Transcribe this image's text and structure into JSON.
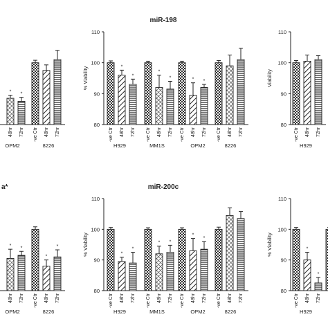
{
  "chart_data": [
    {
      "type": "bar",
      "title": "",
      "ylabel": "",
      "ylim": [
        80,
        110
      ],
      "yticks": [
        "80",
        "90",
        "100",
        "110"
      ],
      "categories": [
        "48hr",
        "72hr",
        "-ve Ctr",
        "48hr",
        "72hr"
      ],
      "groups": [
        "OPM2",
        "8226"
      ],
      "values": [
        88.5,
        87.5,
        100,
        97.5,
        101
      ],
      "errors": [
        1.0,
        1.3,
        0.8,
        1.8,
        3.0
      ],
      "significance": [
        "*",
        "*",
        "",
        "",
        ""
      ]
    },
    {
      "type": "bar",
      "title": "miR-198",
      "ylabel": "% Viability",
      "ylim": [
        80,
        110
      ],
      "yticks": [
        "80",
        "90",
        "100",
        "110"
      ],
      "groups": [
        "H929",
        "MM1S",
        "OPM2",
        "8226"
      ],
      "categories": [
        "-ve Ctr",
        "48hr",
        "72hr",
        "-ve Ctr",
        "48hr",
        "72hr",
        "-ve Ctr",
        "48hr",
        "72hr",
        "-ve Ctr",
        "48hr",
        "72hr"
      ],
      "values": [
        100,
        96,
        93,
        100,
        92,
        91.5,
        100,
        89.5,
        92,
        100,
        99,
        101
      ],
      "errors": [
        0.6,
        1.6,
        1.7,
        0.5,
        4.0,
        2.5,
        0.5,
        4.0,
        1.0,
        0.7,
        3.5,
        3.7
      ],
      "significance": [
        "",
        "*",
        "*",
        "",
        "*",
        "*",
        "",
        "*",
        "*",
        "",
        "",
        ""
      ]
    },
    {
      "type": "bar",
      "title": "",
      "ylabel": "Viability",
      "ylim": [
        80,
        110
      ],
      "yticks": [
        "80",
        "90",
        "100",
        "110"
      ],
      "groups": [
        "H929"
      ],
      "categories": [
        "-ve Ctr",
        "48hr",
        "72hr"
      ],
      "values": [
        100,
        100.5,
        101
      ],
      "errors": [
        0.7,
        2.0,
        1.3
      ],
      "significance": [
        "",
        "",
        ""
      ]
    },
    {
      "type": "bar",
      "title": "a*",
      "ylabel": "",
      "ylim": [
        80,
        110
      ],
      "yticks": [
        "80",
        "90",
        "100",
        "110"
      ],
      "groups": [
        "OPM2",
        "8226"
      ],
      "categories": [
        "48hr",
        "72hr",
        "-ve Ctr",
        "48hr",
        "72hr"
      ],
      "values": [
        90.5,
        91.5,
        100,
        88,
        91
      ],
      "errors": [
        3.0,
        1.3,
        0.8,
        2.0,
        2.3
      ],
      "significance": [
        "*",
        "*",
        "",
        "*",
        "*"
      ]
    },
    {
      "type": "bar",
      "title": "miR-200c",
      "ylabel": "% Viability",
      "ylim": [
        80,
        110
      ],
      "yticks": [
        "80",
        "90",
        "100",
        "110"
      ],
      "groups": [
        "H929",
        "MM1S",
        "OPM2",
        "8226"
      ],
      "categories": [
        "-ve Ctr",
        "48hr",
        "72hr",
        "-ve Ctr",
        "48hr",
        "72hr",
        "-ve Ctr",
        "48hr",
        "72hr",
        "-ve Ctr",
        "48hr",
        "72hr"
      ],
      "values": [
        100,
        89.5,
        89,
        100,
        92,
        92.5,
        100,
        93,
        93.5,
        100,
        104.5,
        103.5
      ],
      "errors": [
        0.6,
        1.4,
        3.5,
        0.5,
        2.5,
        2.3,
        0.5,
        4.0,
        2.5,
        0.7,
        2.5,
        2.3
      ],
      "significance": [
        "",
        "*",
        "*",
        "",
        "*",
        "*",
        "",
        "*",
        "*",
        "",
        "",
        ""
      ]
    },
    {
      "type": "bar",
      "title": "",
      "ylabel": "% Viability",
      "ylim": [
        80,
        110
      ],
      "yticks": [
        "80",
        "90",
        "100",
        "110"
      ],
      "groups": [
        "H929"
      ],
      "categories": [
        "-ve Ctr",
        "48hr",
        "72hr",
        "-ve Ctr"
      ],
      "values": [
        100,
        90,
        82.5,
        100
      ],
      "errors": [
        0.6,
        2.5,
        1.8,
        0.6
      ],
      "significance": [
        "",
        "*",
        "*",
        ""
      ]
    }
  ]
}
